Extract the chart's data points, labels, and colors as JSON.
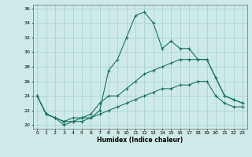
{
  "xlabel": "Humidex (Indice chaleur)",
  "ylabel": "",
  "background_color": "#ceeae8",
  "grid_color": "#a8d4d0",
  "line_color": "#1a7060",
  "xlim": [
    -0.5,
    23.5
  ],
  "ylim": [
    19.5,
    36.5
  ],
  "yticks": [
    20,
    22,
    24,
    26,
    28,
    30,
    32,
    34,
    36
  ],
  "xticks": [
    0,
    1,
    2,
    3,
    4,
    5,
    6,
    7,
    8,
    9,
    10,
    11,
    12,
    13,
    14,
    15,
    16,
    17,
    18,
    19,
    20,
    21,
    22,
    23
  ],
  "line1_x": [
    0,
    1,
    2,
    3,
    4,
    5,
    6,
    7,
    8,
    9,
    10,
    11,
    12,
    13,
    14,
    15,
    16,
    17,
    18,
    19,
    20,
    21,
    22,
    23
  ],
  "line1_y": [
    24,
    21.5,
    21,
    20,
    20.5,
    21,
    21,
    22,
    27.5,
    29,
    32,
    35,
    35.5,
    34,
    30.5,
    31.5,
    30.5,
    30.5,
    29,
    29,
    26.5,
    24,
    23.5,
    23
  ],
  "line2_x": [
    0,
    1,
    2,
    3,
    4,
    5,
    6,
    7,
    8,
    9,
    10,
    11,
    12,
    13,
    14,
    15,
    16,
    17,
    18,
    19,
    20,
    21,
    22,
    23
  ],
  "line2_y": [
    24,
    21.5,
    21,
    20.5,
    21,
    21,
    21.5,
    23,
    24,
    24,
    25,
    26,
    27,
    27.5,
    28,
    28.5,
    29,
    29,
    29,
    29,
    26.5,
    24,
    23.5,
    23
  ],
  "line3_x": [
    0,
    1,
    2,
    3,
    4,
    5,
    6,
    7,
    8,
    9,
    10,
    11,
    12,
    13,
    14,
    15,
    16,
    17,
    18,
    19,
    20,
    21,
    22,
    23
  ],
  "line3_y": [
    24,
    21.5,
    21,
    20.5,
    20.5,
    20.5,
    21,
    21.5,
    22,
    22.5,
    23,
    23.5,
    24,
    24.5,
    25,
    25,
    25.5,
    25.5,
    26,
    26,
    24,
    23,
    22.5,
    22.5
  ]
}
